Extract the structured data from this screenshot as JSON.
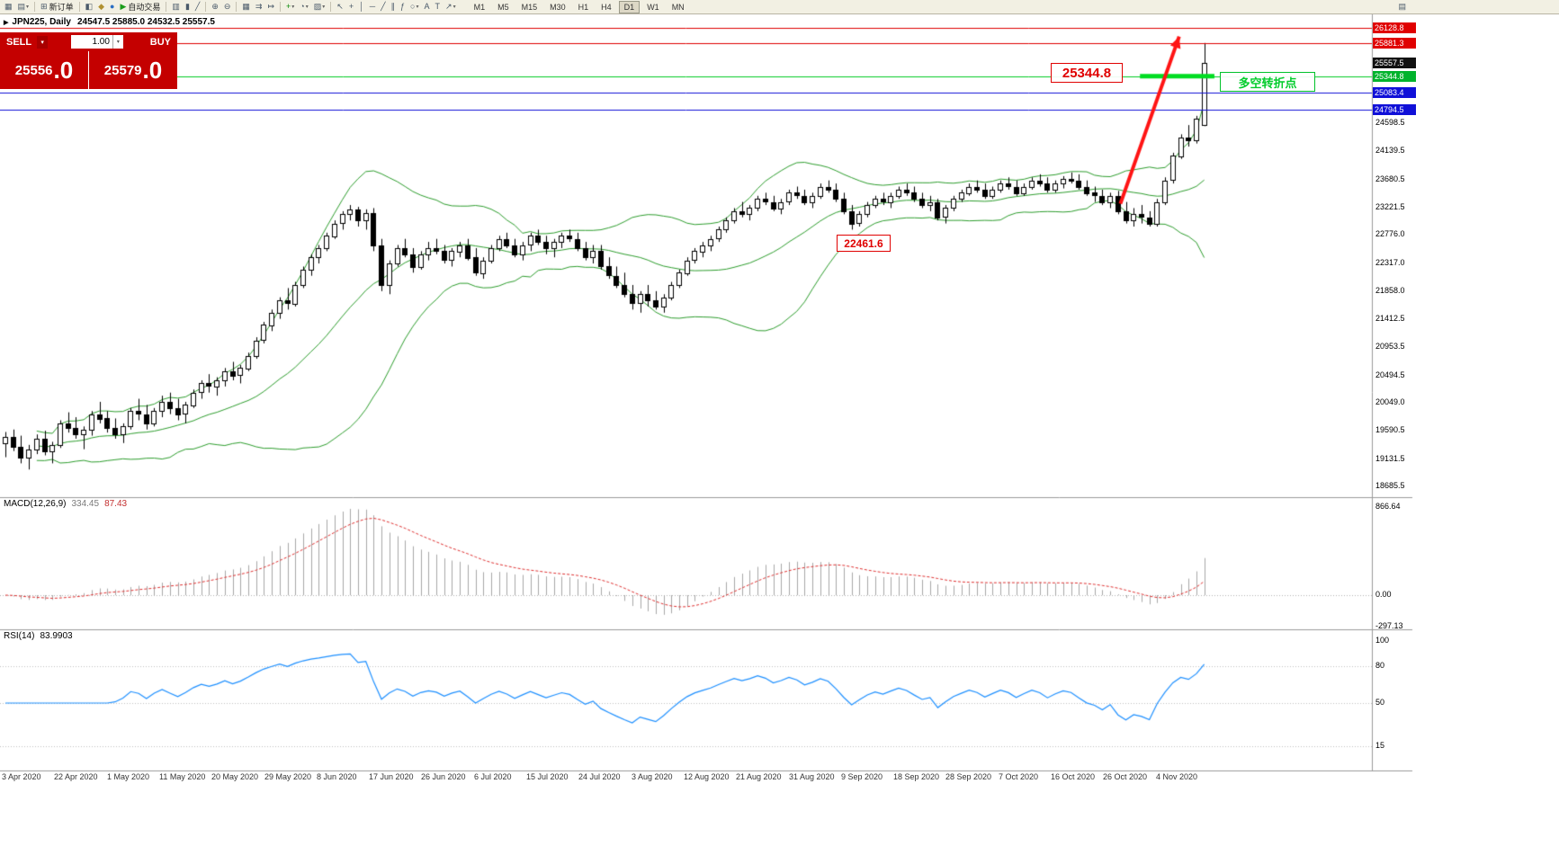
{
  "toolbar": {
    "caret": "▾",
    "buttons": [
      {
        "id": "new-chart",
        "glyph": "▦"
      },
      {
        "id": "profiles",
        "glyph": "▤",
        "caret": true
      },
      {
        "id": "new-order",
        "glyph": "⊞",
        "label": "新订单"
      },
      {
        "id": "chart-window",
        "glyph": "◧"
      },
      {
        "id": "alerts",
        "glyph": "◆",
        "color": "#b09030"
      },
      {
        "id": "community",
        "glyph": "●",
        "color": "#2b6fc4"
      },
      {
        "id": "auto-trading",
        "glyph": "▶",
        "label": "自动交易",
        "color": "#1a9c1a"
      },
      {
        "id": "bar-chart",
        "glyph": "▥"
      },
      {
        "id": "candlestick-chart",
        "glyph": "▮"
      },
      {
        "id": "line-chart",
        "glyph": "╱"
      },
      {
        "id": "zoom-in",
        "glyph": "⊕"
      },
      {
        "id": "zoom-out",
        "glyph": "⊖"
      },
      {
        "id": "tile-windows",
        "glyph": "▦"
      },
      {
        "id": "auto-scroll",
        "glyph": "⇉"
      },
      {
        "id": "chart-shift",
        "glyph": "↦"
      },
      {
        "id": "indicators",
        "glyph": "+",
        "color": "#0a8a0a",
        "caret": true
      },
      {
        "id": "periods",
        "glyph": "◔",
        "caret": true
      },
      {
        "id": "templates",
        "glyph": "▨",
        "caret": true
      },
      {
        "id": "cursor",
        "glyph": "↖"
      },
      {
        "id": "crosshair",
        "glyph": "+"
      },
      {
        "id": "vertical-line",
        "glyph": "│"
      },
      {
        "id": "horizontal-line",
        "glyph": "─"
      },
      {
        "id": "trendline",
        "glyph": "╱"
      },
      {
        "id": "equidistant-channel",
        "glyph": "∥"
      },
      {
        "id": "fibonacci",
        "glyph": "ƒ"
      },
      {
        "id": "shapes",
        "glyph": "○",
        "caret": true
      },
      {
        "id": "text",
        "glyph": "A"
      },
      {
        "id": "text-label",
        "glyph": "T"
      },
      {
        "id": "arrows",
        "glyph": "↗",
        "caret": true
      }
    ],
    "timeframes": [
      "M1",
      "M5",
      "M15",
      "M30",
      "H1",
      "H4",
      "D1",
      "W1",
      "MN"
    ],
    "active_timeframe": "D1",
    "right_button": {
      "id": "chart-docking",
      "glyph": "▤"
    }
  },
  "symbol_line": {
    "marker": "▶",
    "symbol": "JPN225, Daily",
    "ohlc": "24547.5 25885.0 24532.5 25557.5"
  },
  "trade_panel": {
    "sell_label": "SELL",
    "buy_label": "BUY",
    "lot": "1.00",
    "caret": "▾",
    "sell_price_main": "25556",
    "sell_price_big": ".0",
    "buy_price_main": "25579",
    "buy_price_big": ".0",
    "panel_color": "#c40000"
  },
  "price_axis": {
    "ticks": [
      {
        "label": "24598.5",
        "price": 24598.5
      },
      {
        "label": "24139.5",
        "price": 24139.5
      },
      {
        "label": "23680.5",
        "price": 23680.5
      },
      {
        "label": "23221.5",
        "price": 23221.5
      },
      {
        "label": "22776.0",
        "price": 22776.0
      },
      {
        "label": "22317.0",
        "price": 22317.0
      },
      {
        "label": "21858.0",
        "price": 21858.0
      },
      {
        "label": "21412.5",
        "price": 21412.5
      },
      {
        "label": "20953.5",
        "price": 20953.5
      },
      {
        "label": "20494.5",
        "price": 20494.5
      },
      {
        "label": "20049.0",
        "price": 20049.0
      },
      {
        "label": "19590.5",
        "price": 19590.5
      },
      {
        "label": "19131.5",
        "price": 19131.5
      },
      {
        "label": "18685.5",
        "price": 18685.5
      }
    ],
    "tags": [
      {
        "label": "26128.8",
        "price": 26128.8,
        "color": "#e00000"
      },
      {
        "label": "25881.3",
        "price": 25881.3,
        "color": "#e00000"
      },
      {
        "label": "25557.5",
        "price": 25557.5,
        "color": "#111111"
      },
      {
        "label": "25344.8",
        "price": 25344.8,
        "color": "#00b32c"
      },
      {
        "label": "25083.4",
        "price": 25083.4,
        "color": "#1010d8"
      },
      {
        "label": "24794.5",
        "price": 24794.5,
        "color": "#1010d8"
      }
    ]
  },
  "date_axis": {
    "labels": [
      "3 Apr 2020",
      "22 Apr 2020",
      "1 May 2020",
      "11 May 2020",
      "20 May 2020",
      "29 May 2020",
      "8 Jun 2020",
      "17 Jun 2020",
      "26 Jun 2020",
      "6 Jul 2020",
      "15 Jul 2020",
      "24 Jul 2020",
      "3 Aug 2020",
      "12 Aug 2020",
      "21 Aug 2020",
      "31 Aug 2020",
      "9 Sep 2020",
      "18 Sep 2020",
      "28 Sep 2020",
      "7 Oct 2020",
      "16 Oct 2020",
      "26 Oct 2020",
      "4 Nov 2020"
    ]
  },
  "panels": {
    "macd": {
      "title": "MACD(12,26,9)",
      "main_value": "334.45",
      "signal_value": "87.43",
      "axis": [
        "866.64",
        "0.00",
        "-297.13"
      ]
    },
    "rsi": {
      "title": "RSI(14)",
      "value": "83.9903",
      "axis": [
        "100",
        "80",
        "50",
        "15"
      ],
      "levels": [
        80,
        50,
        15
      ]
    }
  },
  "levels": [
    {
      "price": 26128.8,
      "color": "#e00000"
    },
    {
      "price": 25881.3,
      "color": "#e00000"
    },
    {
      "price": 25344.8,
      "color": "#00cc22"
    },
    {
      "price": 25083.4,
      "color": "#1010d8"
    },
    {
      "price": 24794.5,
      "color": "#1010d8"
    }
  ],
  "annotations": {
    "turning_level_label": {
      "text": "25344.8"
    },
    "support_label": {
      "text": "22461.6"
    },
    "note": {
      "text": "多空转折点"
    },
    "arrow": {
      "from_bar": 142.3,
      "from_price": 23270,
      "to_bar": 149.8,
      "to_price": 25990,
      "color": "#ff1414",
      "width": 4
    },
    "bold_segment": {
      "price": 25344.8,
      "from_bar": 144.8,
      "to_bar": 154.3,
      "color": "#00dd22",
      "width": 5
    }
  },
  "chart_data": {
    "type": "candlestick",
    "symbol": "JPN225",
    "timeframe": "Daily",
    "current_bar": {
      "open": 24547.5,
      "high": 25885.0,
      "low": 24532.5,
      "close": 25557.5
    },
    "indicators": {
      "bollinger": "20, 2",
      "macd": "12, 26, 9",
      "rsi": "14"
    },
    "price_range": [
      18500,
      26350
    ],
    "candles": [
      [
        19380,
        19560,
        19150,
        19480
      ],
      [
        19480,
        19600,
        19250,
        19320
      ],
      [
        19320,
        19500,
        19050,
        19150
      ],
      [
        19150,
        19350,
        18950,
        19280
      ],
      [
        19280,
        19520,
        19200,
        19450
      ],
      [
        19450,
        19580,
        19180,
        19250
      ],
      [
        19250,
        19400,
        19050,
        19350
      ],
      [
        19350,
        19750,
        19300,
        19700
      ],
      [
        19700,
        19880,
        19550,
        19620
      ],
      [
        19620,
        19800,
        19450,
        19520
      ],
      [
        19520,
        19650,
        19280,
        19600
      ],
      [
        19600,
        19900,
        19500,
        19850
      ],
      [
        19850,
        20050,
        19700,
        19780
      ],
      [
        19780,
        19900,
        19550,
        19620
      ],
      [
        19620,
        19780,
        19450,
        19520
      ],
      [
        19520,
        19700,
        19380,
        19650
      ],
      [
        19650,
        19950,
        19600,
        19900
      ],
      [
        19900,
        20100,
        19750,
        19850
      ],
      [
        19850,
        20000,
        19600,
        19700
      ],
      [
        19700,
        19950,
        19650,
        19900
      ],
      [
        19900,
        20150,
        19800,
        20050
      ],
      [
        20050,
        20200,
        19850,
        19950
      ],
      [
        19950,
        20100,
        19750,
        19850
      ],
      [
        19850,
        20050,
        19700,
        20000
      ],
      [
        20000,
        20250,
        19950,
        20200
      ],
      [
        20200,
        20400,
        20100,
        20350
      ],
      [
        20350,
        20500,
        20200,
        20300
      ],
      [
        20300,
        20450,
        20150,
        20400
      ],
      [
        20400,
        20600,
        20300,
        20550
      ],
      [
        20550,
        20700,
        20400,
        20480
      ],
      [
        20480,
        20650,
        20350,
        20600
      ],
      [
        20600,
        20850,
        20550,
        20800
      ],
      [
        20800,
        21100,
        20750,
        21050
      ],
      [
        21050,
        21350,
        21000,
        21300
      ],
      [
        21300,
        21550,
        21200,
        21500
      ],
      [
        21500,
        21750,
        21400,
        21700
      ],
      [
        21700,
        21900,
        21550,
        21650
      ],
      [
        21650,
        22000,
        21600,
        21950
      ],
      [
        21950,
        22250,
        21900,
        22200
      ],
      [
        22200,
        22450,
        22100,
        22400
      ],
      [
        22400,
        22600,
        22300,
        22550
      ],
      [
        22550,
        22800,
        22500,
        22750
      ],
      [
        22750,
        23000,
        22700,
        22950
      ],
      [
        22950,
        23150,
        22850,
        23100
      ],
      [
        23100,
        23250,
        23000,
        23180
      ],
      [
        23180,
        23220,
        22900,
        23000
      ],
      [
        23000,
        23180,
        22850,
        23120
      ],
      [
        23120,
        23200,
        22500,
        22600
      ],
      [
        22600,
        22700,
        21850,
        21950
      ],
      [
        21950,
        22350,
        21800,
        22300
      ],
      [
        22300,
        22600,
        22250,
        22550
      ],
      [
        22550,
        22700,
        22400,
        22450
      ],
      [
        22450,
        22550,
        22150,
        22250
      ],
      [
        22250,
        22500,
        22200,
        22450
      ],
      [
        22450,
        22650,
        22350,
        22550
      ],
      [
        22550,
        22700,
        22450,
        22500
      ],
      [
        22500,
        22600,
        22300,
        22350
      ],
      [
        22350,
        22550,
        22250,
        22500
      ],
      [
        22500,
        22650,
        22400,
        22600
      ],
      [
        22600,
        22700,
        22350,
        22400
      ],
      [
        22400,
        22550,
        22100,
        22150
      ],
      [
        22150,
        22400,
        22050,
        22350
      ],
      [
        22350,
        22600,
        22300,
        22550
      ],
      [
        22550,
        22750,
        22500,
        22700
      ],
      [
        22700,
        22800,
        22550,
        22600
      ],
      [
        22600,
        22700,
        22400,
        22450
      ],
      [
        22450,
        22650,
        22350,
        22600
      ],
      [
        22600,
        22800,
        22500,
        22750
      ],
      [
        22750,
        22850,
        22600,
        22650
      ],
      [
        22650,
        22750,
        22450,
        22550
      ],
      [
        22550,
        22700,
        22400,
        22650
      ],
      [
        22650,
        22800,
        22550,
        22750
      ],
      [
        22750,
        22850,
        22650,
        22700
      ],
      [
        22700,
        22800,
        22500,
        22550
      ],
      [
        22550,
        22650,
        22350,
        22400
      ],
      [
        22400,
        22600,
        22300,
        22500
      ],
      [
        22500,
        22600,
        22200,
        22250
      ],
      [
        22250,
        22400,
        22050,
        22100
      ],
      [
        22100,
        22250,
        21900,
        21950
      ],
      [
        21950,
        22150,
        21750,
        21800
      ],
      [
        21800,
        21950,
        21550,
        21650
      ],
      [
        21650,
        21850,
        21500,
        21800
      ],
      [
        21800,
        21950,
        21600,
        21700
      ],
      [
        21700,
        21850,
        21550,
        21600
      ],
      [
        21600,
        21800,
        21500,
        21750
      ],
      [
        21750,
        22000,
        21700,
        21950
      ],
      [
        21950,
        22200,
        21900,
        22150
      ],
      [
        22150,
        22400,
        22100,
        22350
      ],
      [
        22350,
        22550,
        22300,
        22500
      ],
      [
        22500,
        22650,
        22400,
        22600
      ],
      [
        22600,
        22750,
        22500,
        22700
      ],
      [
        22700,
        22900,
        22650,
        22850
      ],
      [
        22850,
        23050,
        22800,
        23000
      ],
      [
        23000,
        23200,
        22950,
        23150
      ],
      [
        23150,
        23300,
        23050,
        23100
      ],
      [
        23100,
        23250,
        23000,
        23200
      ],
      [
        23200,
        23400,
        23150,
        23350
      ],
      [
        23350,
        23450,
        23250,
        23300
      ],
      [
        23300,
        23400,
        23150,
        23200
      ],
      [
        23200,
        23350,
        23100,
        23300
      ],
      [
        23300,
        23500,
        23250,
        23450
      ],
      [
        23450,
        23550,
        23350,
        23400
      ],
      [
        23400,
        23500,
        23250,
        23300
      ],
      [
        23300,
        23450,
        23200,
        23400
      ],
      [
        23400,
        23600,
        23350,
        23550
      ],
      [
        23550,
        23650,
        23450,
        23500
      ],
      [
        23500,
        23600,
        23300,
        23350
      ],
      [
        23350,
        23450,
        23100,
        23150
      ],
      [
        23150,
        23250,
        22850,
        22950
      ],
      [
        22950,
        23150,
        22900,
        23100
      ],
      [
        23100,
        23300,
        23050,
        23250
      ],
      [
        23250,
        23400,
        23200,
        23350
      ],
      [
        23350,
        23450,
        23250,
        23300
      ],
      [
        23300,
        23450,
        23200,
        23400
      ],
      [
        23400,
        23550,
        23350,
        23500
      ],
      [
        23500,
        23600,
        23400,
        23450
      ],
      [
        23450,
        23550,
        23300,
        23350
      ],
      [
        23350,
        23450,
        23200,
        23250
      ],
      [
        23250,
        23400,
        23150,
        23300
      ],
      [
        23300,
        23350,
        23000,
        23050
      ],
      [
        23050,
        23250,
        22950,
        23200
      ],
      [
        23200,
        23400,
        23150,
        23350
      ],
      [
        23350,
        23500,
        23300,
        23450
      ],
      [
        23450,
        23600,
        23400,
        23550
      ],
      [
        23550,
        23650,
        23450,
        23500
      ],
      [
        23500,
        23600,
        23350,
        23400
      ],
      [
        23400,
        23550,
        23350,
        23500
      ],
      [
        23500,
        23650,
        23450,
        23600
      ],
      [
        23600,
        23700,
        23500,
        23550
      ],
      [
        23550,
        23650,
        23400,
        23450
      ],
      [
        23450,
        23600,
        23400,
        23550
      ],
      [
        23550,
        23700,
        23500,
        23650
      ],
      [
        23650,
        23750,
        23550,
        23600
      ],
      [
        23600,
        23700,
        23450,
        23500
      ],
      [
        23500,
        23650,
        23450,
        23600
      ],
      [
        23600,
        23720,
        23520,
        23680
      ],
      [
        23680,
        23780,
        23600,
        23650
      ],
      [
        23650,
        23750,
        23500,
        23550
      ],
      [
        23550,
        23650,
        23400,
        23450
      ],
      [
        23450,
        23550,
        23300,
        23400
      ],
      [
        23400,
        23500,
        23250,
        23300
      ],
      [
        23300,
        23450,
        23200,
        23400
      ],
      [
        23400,
        23480,
        23100,
        23150
      ],
      [
        23150,
        23300,
        22950,
        23000
      ],
      [
        23000,
        23200,
        22900,
        23100
      ],
      [
        23100,
        23250,
        22950,
        23050
      ],
      [
        23050,
        23150,
        22900,
        22950
      ],
      [
        22950,
        23350,
        22900,
        23300
      ],
      [
        23300,
        23700,
        23250,
        23650
      ],
      [
        23650,
        24100,
        23600,
        24050
      ],
      [
        24050,
        24400,
        24000,
        24350
      ],
      [
        24350,
        24550,
        24200,
        24300
      ],
      [
        24300,
        24700,
        24250,
        24650
      ],
      [
        24547.5,
        25885.0,
        24532.5,
        25557.5
      ]
    ]
  }
}
